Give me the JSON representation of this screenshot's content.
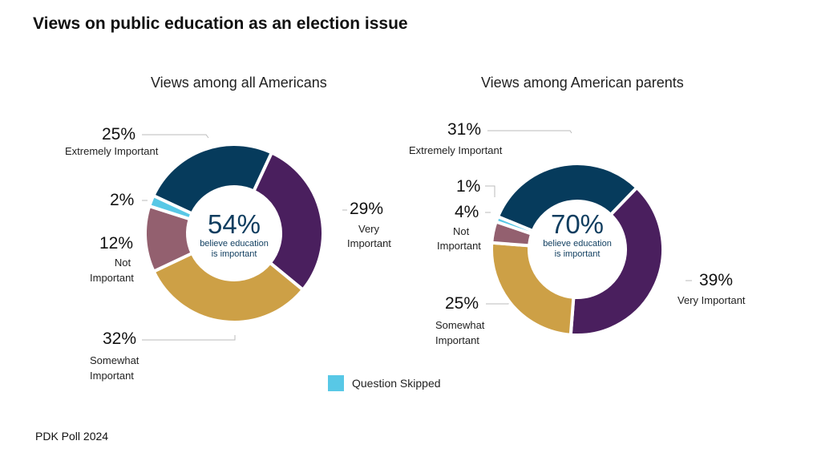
{
  "title": "Views on public education as an election issue",
  "source": "PDK Poll 2024",
  "legend": {
    "label": "Question Skipped",
    "color": "#58c8e6"
  },
  "chart_data": [
    {
      "type": "pie",
      "title": "Views among all Americans",
      "center_value": "54%",
      "center_text": [
        "believe education",
        "is important"
      ],
      "slices": [
        {
          "name": "Extremely Important",
          "value": 25,
          "label": "25%",
          "color": "#063b5c"
        },
        {
          "name": "Very Important",
          "value": 29,
          "label": "29%",
          "color": "#4a1f5e"
        },
        {
          "name": "Somewhat Important",
          "value": 32,
          "label": "32%",
          "color": "#cda046"
        },
        {
          "name": "Not Important",
          "value": 12,
          "label": "12%",
          "color": "#93606f"
        },
        {
          "name": "Question Skipped",
          "value": 2,
          "label": "2%",
          "color": "#58c8e6"
        }
      ]
    },
    {
      "type": "pie",
      "title": "Views among American parents",
      "center_value": "70%",
      "center_text": [
        "believe education",
        "is important"
      ],
      "slices": [
        {
          "name": "Extremely Important",
          "value": 31,
          "label": "31%",
          "color": "#063b5c"
        },
        {
          "name": "Very Important",
          "value": 39,
          "label": "39%",
          "color": "#4a1f5e"
        },
        {
          "name": "Somewhat Important",
          "value": 25,
          "label": "25%",
          "color": "#cda046"
        },
        {
          "name": "Not Important",
          "value": 4,
          "label": "4%",
          "color": "#93606f"
        },
        {
          "name": "Question Skipped",
          "value": 1,
          "label": "1%",
          "color": "#58c8e6"
        }
      ]
    }
  ],
  "label_text": {
    "extremely": "Extremely Important",
    "very": "Very",
    "very2": "Important",
    "very_full": "Very Important",
    "not": "Not",
    "not2": "Important",
    "somewhat": "Somewhat",
    "somewhat2": "Important"
  }
}
